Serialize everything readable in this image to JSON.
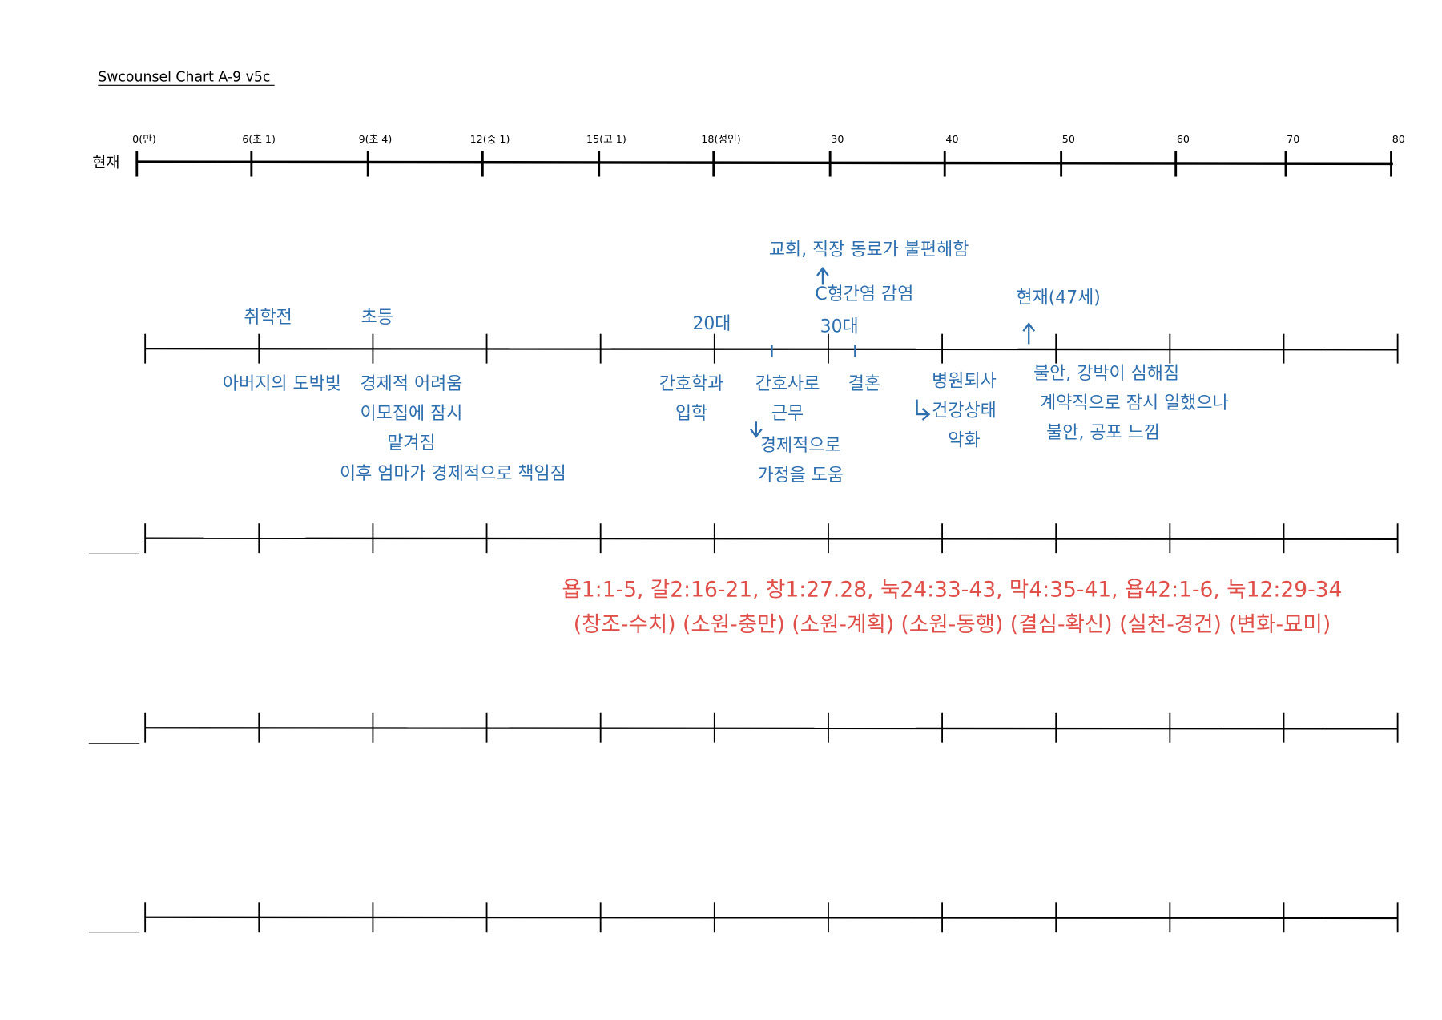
{
  "title": "Swcounsel Chart A-9 v5c",
  "top_timeline": {
    "row_label": "현재",
    "ticks": [
      "0(만)",
      "6(초 1)",
      "9(초 4)",
      "12(중 1)",
      "15(고 1)",
      "18(성인)",
      "30",
      "40",
      "50",
      "60",
      "70",
      "80"
    ]
  },
  "annotations": [
    {
      "lines": [
        "교회, 직장 동료가 불편해함"
      ]
    },
    {
      "lines": [
        "C형간염 감염"
      ]
    },
    {
      "lines": [
        "현재(47세)"
      ]
    },
    {
      "lines": [
        "취학전"
      ]
    },
    {
      "lines": [
        "초등"
      ]
    },
    {
      "lines": [
        "20대"
      ]
    },
    {
      "lines": [
        "30대"
      ]
    },
    {
      "lines": [
        "아버지의 도박빚"
      ]
    },
    {
      "lines": [
        "경제적 어려움",
        "이모집에 잠시",
        "맡겨짐"
      ]
    },
    {
      "lines": [
        "이후 엄마가 경제적으로 책임짐"
      ]
    },
    {
      "lines": [
        "간호학과",
        "입학"
      ]
    },
    {
      "lines": [
        "간호사로",
        "근무"
      ]
    },
    {
      "lines": [
        "경제적으로",
        "가정을 도움"
      ]
    },
    {
      "lines": [
        "결혼"
      ]
    },
    {
      "lines": [
        "병원퇴사",
        "건강상태",
        "악화"
      ]
    },
    {
      "lines": [
        "불안, 강박이 심해짐",
        "계약직으로 잠시 일했으나",
        "불안, 공포 느낌"
      ]
    }
  ],
  "scripture": {
    "lines": [
      "욥1:1-5, 갈2:16-21, 창1:27.28, 눅24:33-43, 막4:35-41, 욥42:1-6, 눅12:29-34",
      "(창조-수치) (소원-충만) (소원-계획) (소원-동행) (결심-확신) (실천-경건) (변화-묘미)"
    ]
  }
}
